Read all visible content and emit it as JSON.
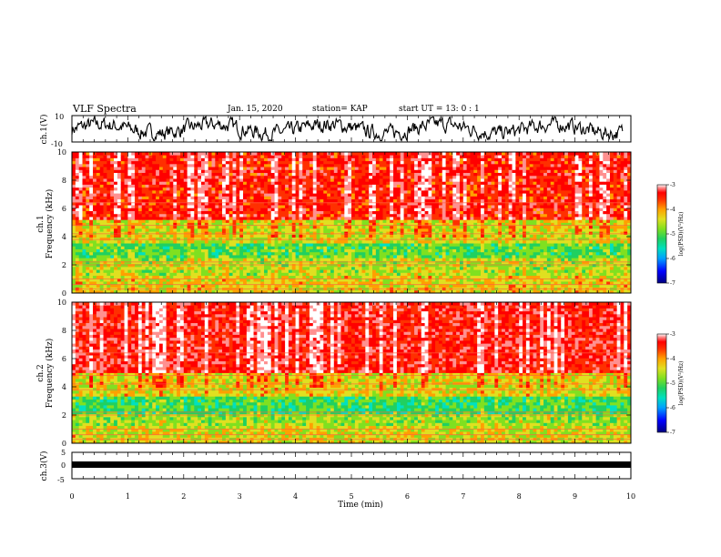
{
  "header": {
    "title": "VLF Spectra",
    "date": "Jan. 15, 2020",
    "station": "station= KAP",
    "start": "start UT =  13: 0  : 1"
  },
  "colorbar": {
    "label": "log(PSD)(V²/Hz)",
    "ticks": [
      "-3",
      "-4",
      "-5",
      "-6",
      "-7"
    ],
    "colors": [
      "#000080",
      "#0000ff",
      "#00a0ff",
      "#00e0c0",
      "#20d060",
      "#80e020",
      "#e0e020",
      "#ffa000",
      "#ff3000",
      "#ff0000",
      "#ff9090",
      "#ffffff"
    ]
  },
  "chart_data": [
    {
      "type": "line",
      "title": "VLF Spectra",
      "ylabel": "ch.1(V)",
      "ylim": [
        -10,
        10
      ],
      "y_ticks": [
        "10",
        "-10"
      ],
      "xlim": [
        0,
        10
      ],
      "series": [
        {
          "values_summary": "noisy waveform fluctuating roughly between -8 and 8 V"
        }
      ]
    },
    {
      "type": "heatmap",
      "ylabel": "ch.1\nFrequency (kHz)",
      "ylim": [
        0,
        10
      ],
      "y_ticks": [
        "0",
        "2",
        "4",
        "6",
        "8",
        "10"
      ],
      "xlim": [
        0,
        10
      ],
      "colorbar_range": [
        -7,
        -3
      ],
      "bands": [
        {
          "f_low": 0.0,
          "f_high": 1.2,
          "level": -4.8
        },
        {
          "f_low": 1.2,
          "f_high": 2.6,
          "level": -5.0
        },
        {
          "f_low": 2.6,
          "f_high": 3.6,
          "level": -5.4
        },
        {
          "f_low": 3.6,
          "f_high": 5.2,
          "level": -4.9
        },
        {
          "f_low": 5.2,
          "f_high": 10.0,
          "level": -3.9
        }
      ]
    },
    {
      "type": "heatmap",
      "ylabel": "ch.2\nFrequency (kHz)",
      "ylim": [
        0,
        10
      ],
      "y_ticks": [
        "0",
        "2",
        "4",
        "6",
        "8",
        "10"
      ],
      "xlim": [
        0,
        10
      ],
      "colorbar_range": [
        -7,
        -3
      ],
      "bands": [
        {
          "f_low": 0.0,
          "f_high": 1.2,
          "level": -4.9
        },
        {
          "f_low": 1.2,
          "f_high": 2.0,
          "level": -5.1
        },
        {
          "f_low": 2.0,
          "f_high": 3.4,
          "level": -5.5
        },
        {
          "f_low": 3.4,
          "f_high": 5.0,
          "level": -4.8
        },
        {
          "f_low": 5.0,
          "f_high": 10.0,
          "level": -3.8
        }
      ]
    },
    {
      "type": "line",
      "ylabel": "ch.3(V)",
      "ylim": [
        -5,
        5
      ],
      "y_ticks": [
        "5",
        "0",
        "-5"
      ],
      "xlim": [
        0,
        9.8
      ],
      "xlabel": "Time (min)",
      "x_ticks": [
        "0",
        "1",
        "2",
        "3",
        "4",
        "5",
        "6",
        "7",
        "8",
        "9",
        "10"
      ],
      "series": [
        {
          "values_summary": "constant near -1 V"
        }
      ]
    }
  ]
}
